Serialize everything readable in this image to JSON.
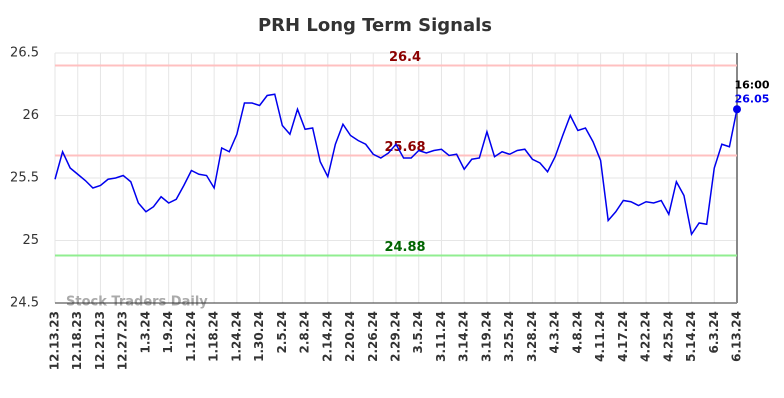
{
  "chart_data": {
    "type": "line",
    "title": "PRH Long Term Signals",
    "watermark": "Stock Traders Daily",
    "last_time": "16:00",
    "categories": [
      "12.13.23",
      null,
      null,
      "12.18.23",
      null,
      null,
      "12.21.23",
      null,
      null,
      "12.27.23",
      null,
      null,
      "1.3.24",
      null,
      null,
      "1.9.24",
      null,
      null,
      "1.12.24",
      null,
      null,
      "1.18.24",
      null,
      null,
      "1.24.24",
      null,
      null,
      "1.30.24",
      null,
      null,
      "2.5.24",
      null,
      null,
      "2.8.24",
      null,
      null,
      "2.14.24",
      null,
      null,
      "2.20.24",
      null,
      null,
      "2.26.24",
      null,
      null,
      "2.29.24",
      null,
      null,
      "3.5.24",
      null,
      null,
      "3.11.24",
      null,
      null,
      "3.14.24",
      null,
      null,
      "3.19.24",
      null,
      null,
      "3.25.24",
      null,
      null,
      "3.28.24",
      null,
      null,
      "4.3.24",
      null,
      null,
      "4.8.24",
      null,
      null,
      "4.11.24",
      null,
      null,
      "4.17.24",
      null,
      null,
      "4.22.24",
      null,
      null,
      "4.25.24",
      null,
      null,
      "5.14.24",
      null,
      null,
      "6.3.24",
      null,
      null,
      "6.13.24"
    ],
    "series": [
      {
        "color": "#0000ee",
        "values": [
          25.49,
          25.71,
          25.58,
          25.53,
          25.48,
          25.42,
          25.44,
          25.49,
          25.5,
          25.52,
          25.47,
          25.3,
          25.23,
          25.27,
          25.35,
          25.3,
          25.33,
          25.44,
          25.56,
          25.53,
          25.52,
          25.42,
          25.74,
          25.71,
          25.85,
          26.1,
          26.1,
          26.08,
          26.16,
          26.17,
          25.92,
          25.85,
          26.05,
          25.89,
          25.9,
          25.63,
          25.51,
          25.77,
          25.93,
          25.84,
          25.8,
          25.77,
          25.69,
          25.66,
          25.7,
          25.77,
          25.66,
          25.66,
          25.72,
          25.7,
          25.72,
          25.73,
          25.68,
          25.69,
          25.57,
          25.65,
          25.66,
          25.87,
          25.67,
          25.71,
          25.69,
          25.72,
          25.73,
          25.65,
          25.62,
          25.55,
          25.67,
          25.84,
          26.0,
          25.88,
          25.9,
          25.79,
          25.64,
          25.16,
          25.23,
          25.32,
          25.31,
          25.28,
          25.31,
          25.3,
          25.32,
          25.21,
          25.47,
          25.36,
          25.05,
          25.14,
          25.13,
          25.58,
          25.77,
          25.75,
          26.05
        ]
      }
    ],
    "hlines": [
      {
        "value": 26.4,
        "color": "#ffc0c0",
        "label_color": "#8b0000"
      },
      {
        "value": 25.68,
        "color": "#ffc0c0",
        "label_color": "#8b0000"
      },
      {
        "value": 24.88,
        "color": "#90ee90",
        "label_color": "#006400"
      }
    ],
    "ylim": [
      24.5,
      26.5
    ],
    "yticks": [
      24.5,
      25,
      25.5,
      26,
      26.5
    ],
    "grid": true
  }
}
